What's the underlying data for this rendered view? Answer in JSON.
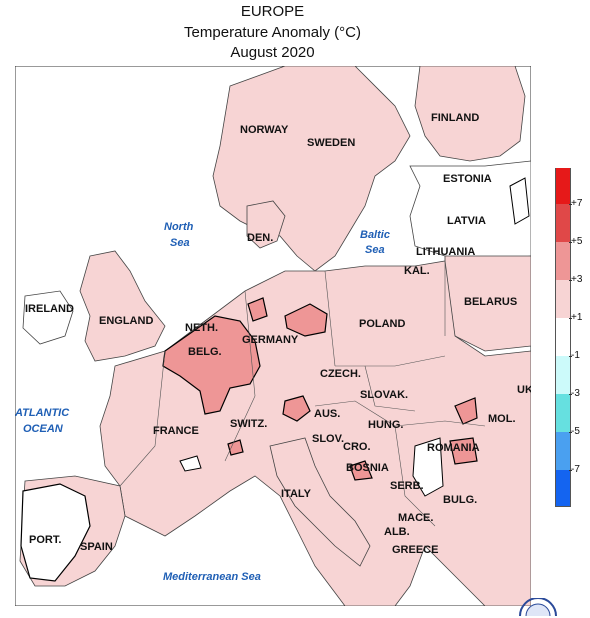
{
  "header": {
    "region": "EUROPE",
    "variable": "Temperature Anomaly (°C)",
    "period": "August 2020"
  },
  "colors": {
    "land_normal": "#ffffff",
    "anomaly_1_3": "#f7d4d4",
    "anomaly_3_5": "#ee9696",
    "anomaly_5_7": "#e04848",
    "anomaly_gt7": "#e61919",
    "anomaly_neg1_neg3": "#ccfafa",
    "anomaly_neg3_neg5": "#66e0e0",
    "anomaly_neg5_neg7": "#4aa0f0",
    "anomaly_lt_neg7": "#1464f0",
    "border": "#444444",
    "contour": "#000000"
  },
  "countries": [
    "NORWAY",
    "SWEDEN",
    "FINLAND",
    "ESTONIA",
    "LATVIA",
    "LITHUANIA",
    "KAL.",
    "BELARUS",
    "DEN.",
    "IRELAND",
    "ENGLAND",
    "NETH.",
    "BELG.",
    "GERMANY",
    "POLAND",
    "CZECH.",
    "SLOVAK.",
    "UK",
    "AUS.",
    "HUNG.",
    "MOL.",
    "SWITZ.",
    "FRANCE",
    "SLOV.",
    "CRO.",
    "ROMANIA",
    "BOSNIA",
    "SERB.",
    "BULG.",
    "ITALY",
    "MACE.",
    "ALB.",
    "GREECE",
    "PORT.",
    "SPAIN"
  ],
  "seas": [
    "North",
    "Sea",
    "Baltic",
    "Sea",
    "ATLANTIC",
    "OCEAN",
    "Mediterranean Sea"
  ],
  "legend": {
    "labels": [
      "+7",
      "+5",
      "+3",
      "+1",
      "-1",
      "-3",
      "-5",
      "-7"
    ]
  }
}
